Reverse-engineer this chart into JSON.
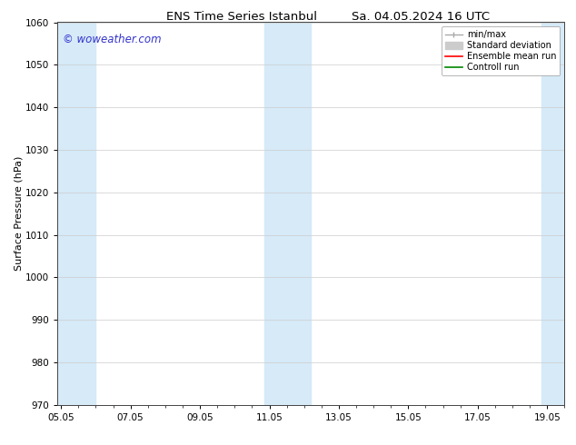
{
  "title_left": "ENS Time Series Istanbul",
  "title_right": "Sa. 04.05.2024 16 UTC",
  "ylabel": "Surface Pressure (hPa)",
  "ylim": [
    970,
    1060
  ],
  "yticks": [
    970,
    980,
    990,
    1000,
    1010,
    1020,
    1030,
    1040,
    1050,
    1060
  ],
  "xtick_labels": [
    "05.05",
    "07.05",
    "09.05",
    "11.05",
    "13.05",
    "15.05",
    "17.05",
    "19.05"
  ],
  "xtick_positions": [
    0,
    2,
    4,
    6,
    8,
    10,
    12,
    14
  ],
  "xlim_start": -0.1,
  "xlim_end": 14.5,
  "watermark": "© woweather.com",
  "watermark_color": "#3333cc",
  "bg_color": "#ffffff",
  "plot_bg_color": "#ffffff",
  "band_color": "#d6eaf8",
  "band1_start": -0.1,
  "band1_end": 1.0,
  "band2_start": 5.85,
  "band2_end": 7.2,
  "band3_start": 13.85,
  "band3_end": 14.5,
  "grid_color": "#cccccc",
  "tick_color": "#000000",
  "font_size_title": 9.5,
  "font_size_axis": 8,
  "font_size_tick": 7.5,
  "font_size_legend": 7,
  "font_size_watermark": 8.5,
  "legend_minmax_color": "#aaaaaa",
  "legend_std_color": "#cccccc",
  "legend_ens_color": "#ff0000",
  "legend_ctrl_color": "#008800"
}
